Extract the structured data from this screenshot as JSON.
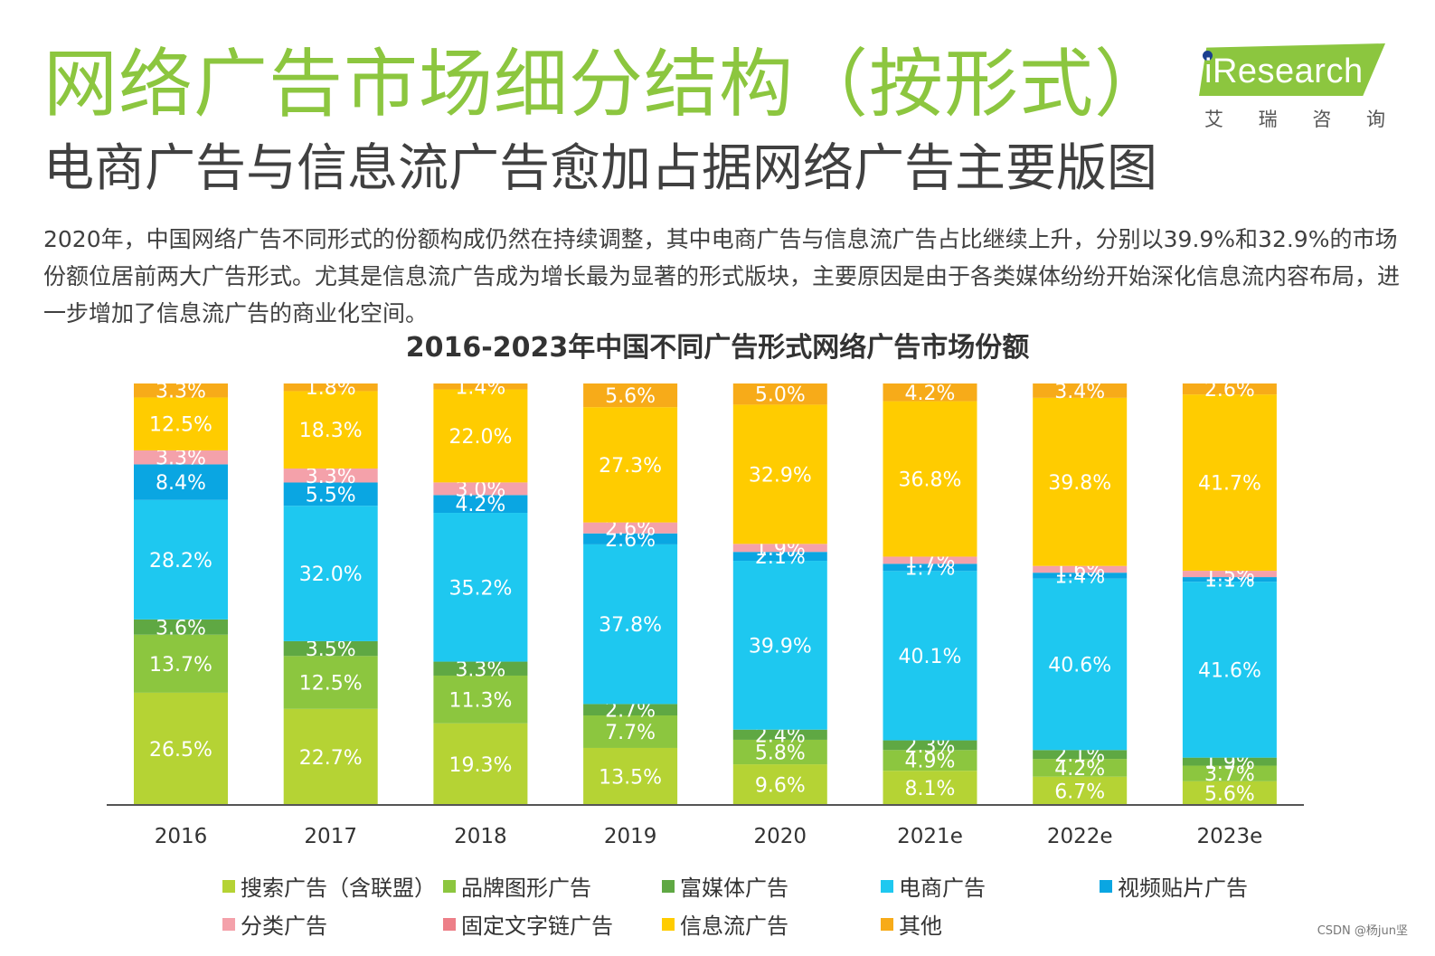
{
  "page": {
    "title": "网络广告市场细分结构（按形式）",
    "subtitle": "电商广告与信息流广告愈加占据网络广告主要版图",
    "body": "2020年，中国网络广告不同形式的份额构成仍然在持续调整，其中电商广告与信息流广告占比继续上升，分别以39.9%和32.9%的市场份额位居前两大广告形式。尤其是信息流广告成为增长最为显著的形式版块，主要原因是由于各类媒体纷纷开始深化信息流内容布局，进一步增加了信息流广告的商业化空间。",
    "logo_word": "iResearch",
    "logo_cn": [
      "艾",
      "瑞",
      "咨",
      "询"
    ],
    "watermark": "CSDN @杨jun坚"
  },
  "chart_data": {
    "type": "bar",
    "stacked": true,
    "percent_of_total": true,
    "title": "2016-2023年中国不同广告形式网络广告市场份额",
    "categories": [
      "2016",
      "2017",
      "2018",
      "2019",
      "2020",
      "2021e",
      "2022e",
      "2023e"
    ],
    "ylim": [
      0,
      100
    ],
    "legend_position": "bottom",
    "series": [
      {
        "name": "搜索广告（含联盟）",
        "color": "#b5d334",
        "values": [
          26.5,
          22.7,
          19.3,
          13.5,
          9.6,
          8.1,
          6.7,
          5.6
        ]
      },
      {
        "name": "品牌图形广告",
        "color": "#8cc63f",
        "values": [
          13.7,
          12.5,
          11.3,
          7.7,
          5.8,
          4.9,
          4.2,
          3.7
        ]
      },
      {
        "name": "富媒体广告",
        "color": "#5fa843",
        "values": [
          3.6,
          3.5,
          3.3,
          2.7,
          2.4,
          2.3,
          2.1,
          1.9
        ]
      },
      {
        "name": "电商广告",
        "color": "#1ec8f0",
        "values": [
          28.2,
          32.0,
          35.2,
          37.8,
          39.9,
          40.1,
          40.6,
          41.6
        ]
      },
      {
        "name": "视频贴片广告",
        "color": "#0aa6e2",
        "values": [
          8.4,
          5.5,
          4.2,
          2.6,
          2.1,
          1.7,
          1.4,
          1.1
        ]
      },
      {
        "name": "分类广告",
        "color": "#f4a1aa",
        "values": [
          3.3,
          3.3,
          3.0,
          2.6,
          1.9,
          1.7,
          1.6,
          1.5
        ]
      },
      {
        "name": "固定文字链广告",
        "color": "#ed7f88",
        "values": [
          0,
          0,
          0,
          0,
          0,
          0,
          0,
          0
        ]
      },
      {
        "name": "信息流广告",
        "color": "#ffcc00",
        "values": [
          12.5,
          18.3,
          22.0,
          27.3,
          32.9,
          36.8,
          39.8,
          41.7
        ]
      },
      {
        "name": "其他",
        "color": "#f7ab19",
        "values": [
          3.3,
          1.8,
          1.4,
          5.6,
          5.0,
          4.2,
          3.4,
          2.6
        ]
      }
    ]
  }
}
